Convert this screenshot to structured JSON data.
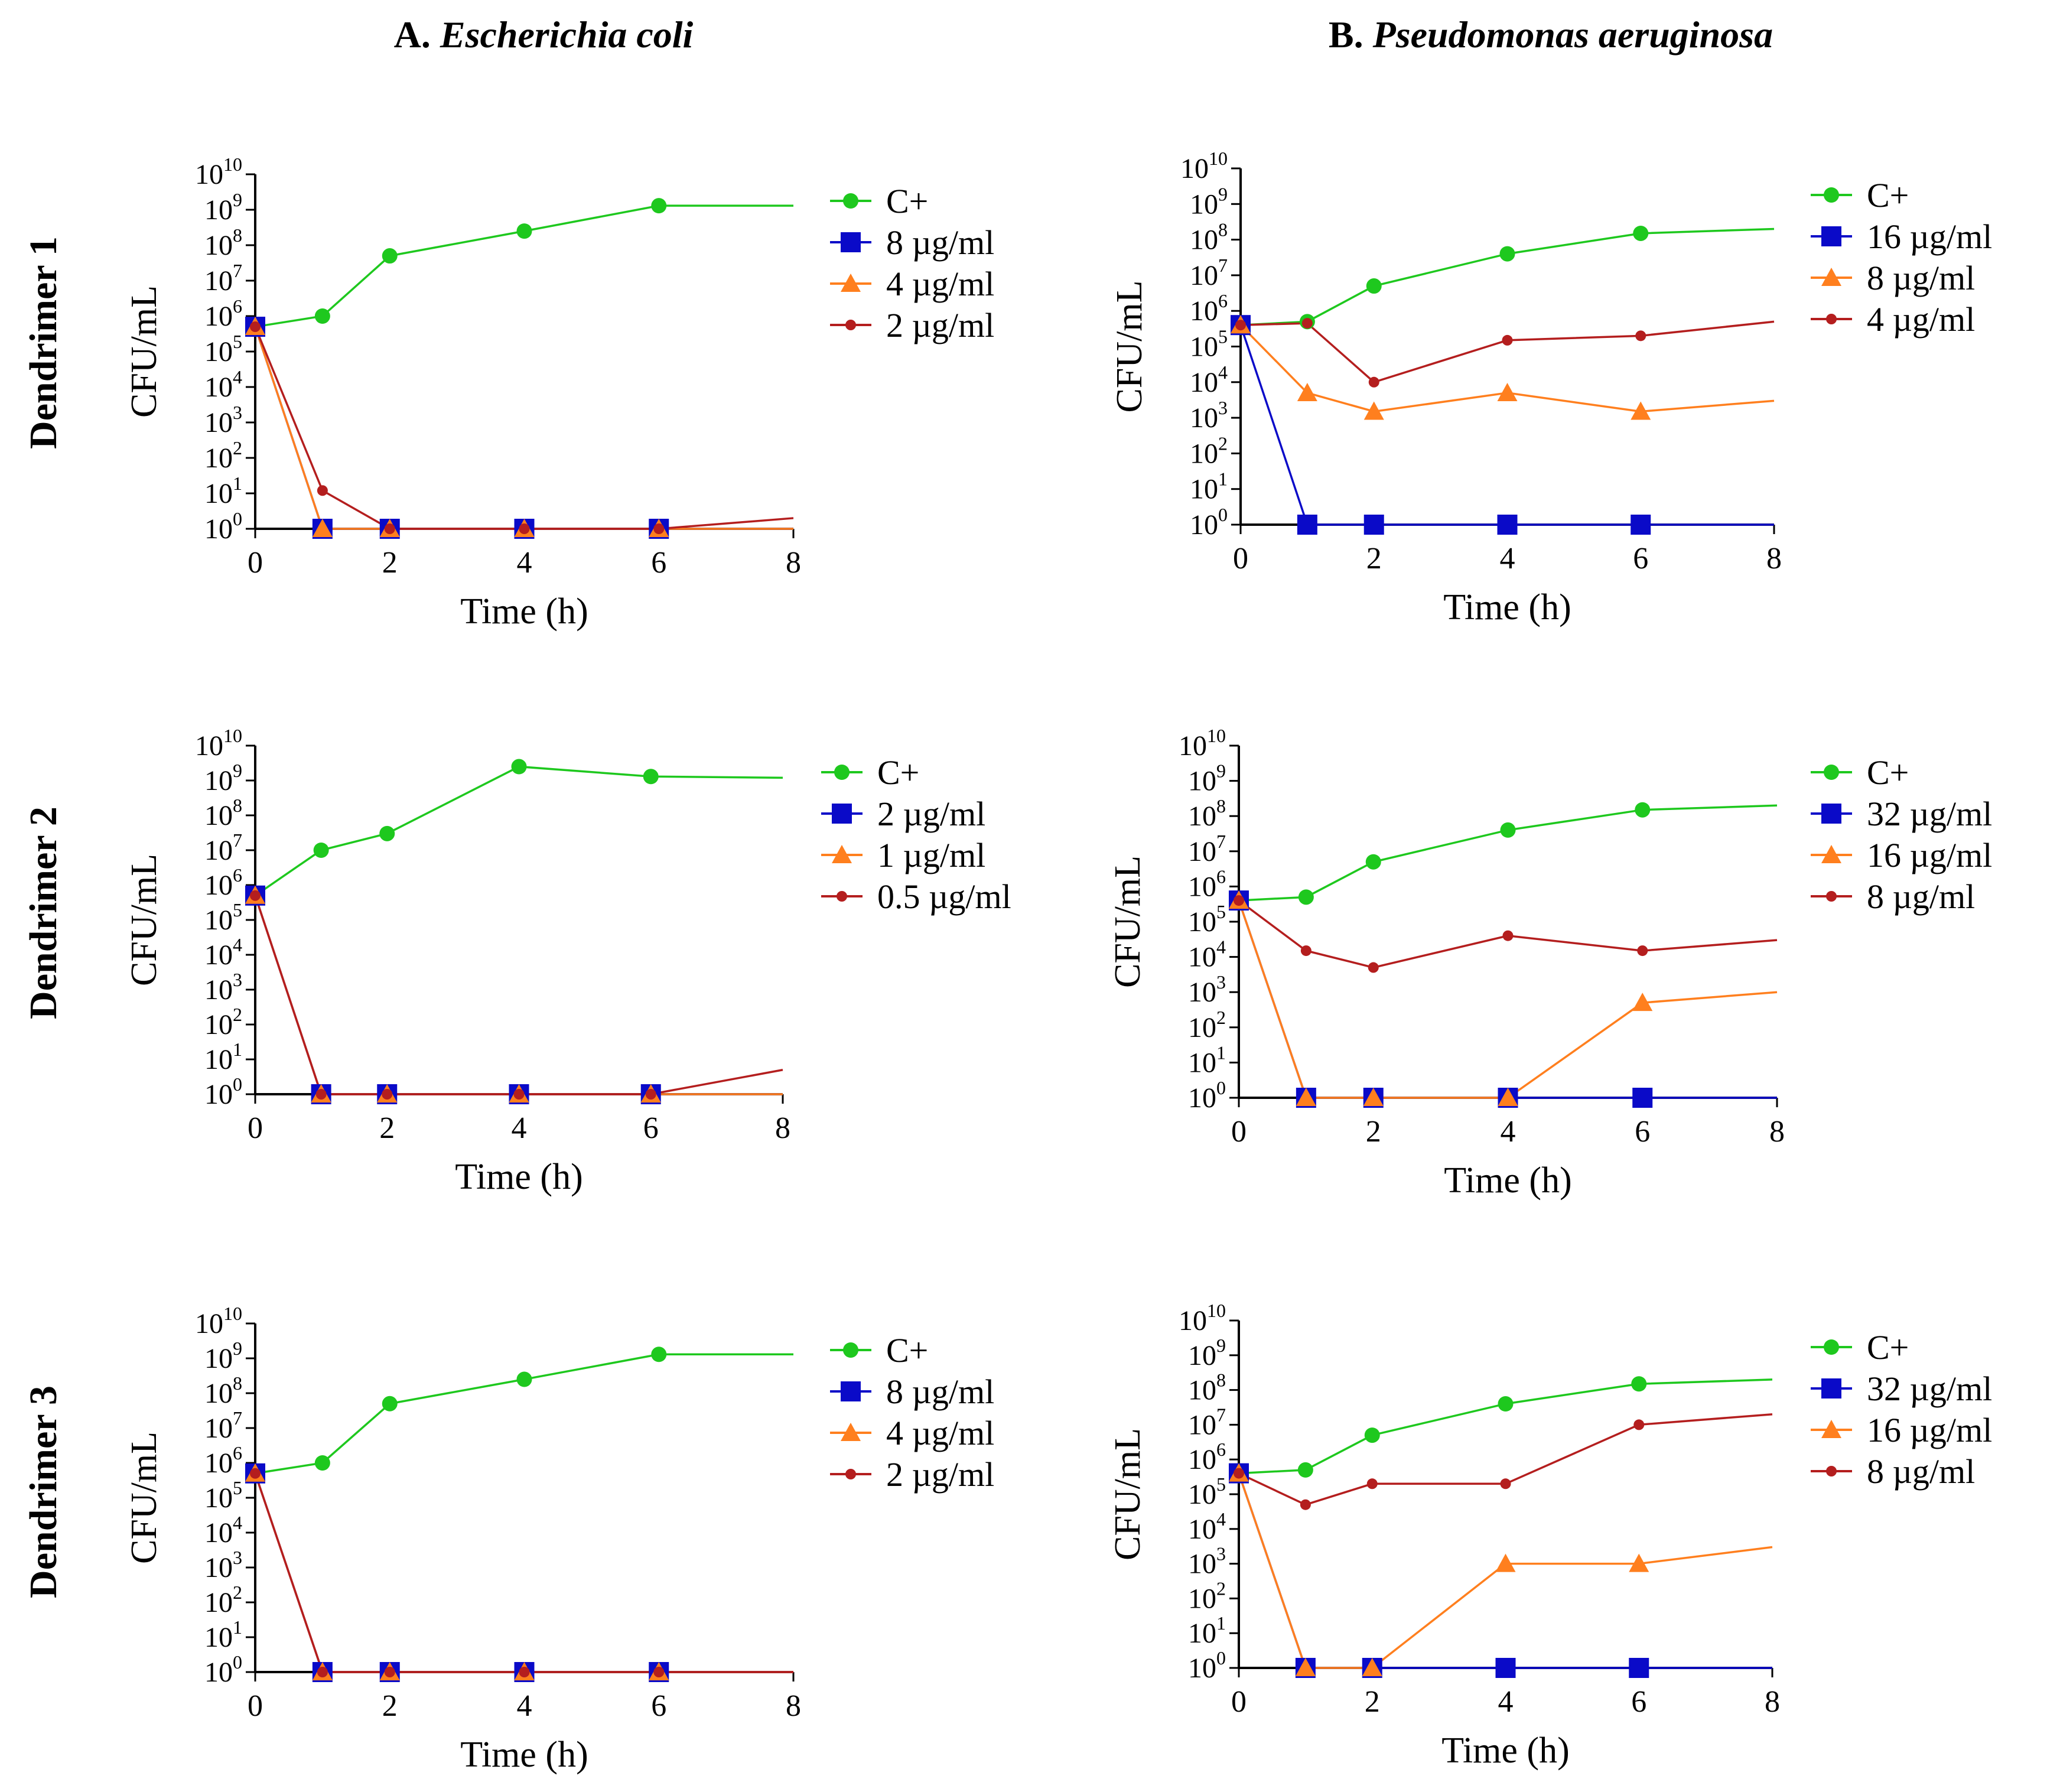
{
  "column_titles": [
    {
      "prefix": "A. ",
      "organism": "Escherichia coli"
    },
    {
      "prefix": "B. ",
      "organism": "Pseudomonas aeruginosa"
    }
  ],
  "row_labels": [
    "Dendrimer 1",
    "Dendrimer 2",
    "Dendrimer 3"
  ],
  "colors": {
    "c_plus": "#1ec81e",
    "high": "#0a0ac8",
    "mid": "#ff7f1e",
    "low": "#b41e1e",
    "axis": "#000000"
  },
  "chart_data": [
    {
      "type": "line",
      "title": "Dendrimer 1 — Escherichia coli",
      "xlabel": "Time (h)",
      "ylabel": "CFU/mL",
      "x": [
        0,
        1,
        2,
        4,
        6,
        8
      ],
      "xticks": [
        "0",
        "2",
        "4",
        "6",
        "8"
      ],
      "yscale": "log10",
      "ylim_exp": [
        0,
        10
      ],
      "series": [
        {
          "name": "C+",
          "marker": "circle",
          "values": [
            500000.0,
            1000000.0,
            50000000.0,
            250000000.0,
            1300000000.0,
            1300000000.0
          ]
        },
        {
          "name": "8 µg/ml",
          "marker": "square",
          "values": [
            500000.0,
            1,
            1,
            1,
            1,
            1
          ]
        },
        {
          "name": "4 µg/ml",
          "marker": "triangle",
          "values": [
            500000.0,
            1,
            1,
            1,
            1,
            1
          ]
        },
        {
          "name": "2 µg/ml",
          "marker": "dot",
          "values": [
            500000.0,
            12,
            1,
            1,
            1,
            2
          ]
        }
      ]
    },
    {
      "type": "line",
      "title": "Dendrimer 1 — Pseudomonas aeruginosa",
      "xlabel": "Time (h)",
      "ylabel": "CFU/mL",
      "x": [
        0,
        1,
        2,
        4,
        6,
        8
      ],
      "xticks": [
        "0",
        "2",
        "4",
        "6",
        "8"
      ],
      "yscale": "log10",
      "ylim_exp": [
        0,
        10
      ],
      "series": [
        {
          "name": "C+",
          "marker": "circle",
          "values": [
            400000.0,
            500000.0,
            5000000.0,
            40000000.0,
            150000000.0,
            200000000.0
          ]
        },
        {
          "name": "16 µg/ml",
          "marker": "square",
          "values": [
            400000.0,
            1,
            1,
            1,
            1,
            1
          ]
        },
        {
          "name": "8 µg/ml",
          "marker": "triangle",
          "values": [
            400000.0,
            5000.0,
            1500.0,
            5000.0,
            1500.0,
            3000.0
          ]
        },
        {
          "name": "4 µg/ml",
          "marker": "dot",
          "values": [
            400000.0,
            450000.0,
            10000.0,
            150000.0,
            200000.0,
            500000.0
          ]
        }
      ]
    },
    {
      "type": "line",
      "title": "Dendrimer 2 — Escherichia coli",
      "xlabel": "Time (h)",
      "ylabel": "CFU/mL",
      "x": [
        0,
        1,
        2,
        4,
        6,
        8
      ],
      "xticks": [
        "0",
        "2",
        "4",
        "6",
        "8"
      ],
      "yscale": "log10",
      "ylim_exp": [
        0,
        10
      ],
      "series": [
        {
          "name": "C+",
          "marker": "circle",
          "values": [
            500000.0,
            10000000.0,
            30000000.0,
            2500000000.0,
            1300000000.0,
            1200000000.0
          ]
        },
        {
          "name": "2 µg/ml",
          "marker": "square",
          "values": [
            500000.0,
            1,
            1,
            1,
            1,
            1
          ]
        },
        {
          "name": "1 µg/ml",
          "marker": "triangle",
          "values": [
            500000.0,
            1,
            1,
            1,
            1,
            1
          ]
        },
        {
          "name": "0.5 µg/ml",
          "marker": "dot",
          "values": [
            500000.0,
            1,
            1,
            1,
            1,
            5
          ]
        }
      ]
    },
    {
      "type": "line",
      "title": "Dendrimer 2 — Pseudomonas aeruginosa",
      "xlabel": "Time (h)",
      "ylabel": "CFU/mL",
      "x": [
        0,
        1,
        2,
        4,
        6,
        8
      ],
      "xticks": [
        "0",
        "2",
        "4",
        "6",
        "8"
      ],
      "yscale": "log10",
      "ylim_exp": [
        0,
        10
      ],
      "series": [
        {
          "name": "C+",
          "marker": "circle",
          "values": [
            400000.0,
            500000.0,
            5000000.0,
            40000000.0,
            150000000.0,
            200000000.0
          ]
        },
        {
          "name": "32 µg/ml",
          "marker": "square",
          "values": [
            400000.0,
            1,
            1,
            1,
            1,
            1
          ]
        },
        {
          "name": "16 µg/ml",
          "marker": "triangle",
          "values": [
            400000.0,
            1,
            1,
            1,
            500.0,
            1000.0
          ]
        },
        {
          "name": "8 µg/ml",
          "marker": "dot",
          "values": [
            400000.0,
            15000.0,
            5000.0,
            40000.0,
            15000.0,
            30000.0
          ]
        }
      ]
    },
    {
      "type": "line",
      "title": "Dendrimer 3 — Escherichia coli",
      "xlabel": "Time (h)",
      "ylabel": "CFU/mL",
      "x": [
        0,
        1,
        2,
        4,
        6,
        8
      ],
      "xticks": [
        "0",
        "2",
        "4",
        "6",
        "8"
      ],
      "yscale": "log10",
      "ylim_exp": [
        0,
        10
      ],
      "series": [
        {
          "name": "C+",
          "marker": "circle",
          "values": [
            500000.0,
            1000000.0,
            50000000.0,
            250000000.0,
            1300000000.0,
            1300000000.0
          ]
        },
        {
          "name": "8 µg/ml",
          "marker": "square",
          "values": [
            500000.0,
            1,
            1,
            1,
            1,
            1
          ]
        },
        {
          "name": "4 µg/ml",
          "marker": "triangle",
          "values": [
            500000.0,
            1,
            1,
            1,
            1,
            1
          ]
        },
        {
          "name": "2 µg/ml",
          "marker": "dot",
          "values": [
            500000.0,
            1,
            1,
            1,
            1,
            1
          ]
        }
      ]
    },
    {
      "type": "line",
      "title": "Dendrimer 3 — Pseudomonas aeruginosa",
      "xlabel": "Time (h)",
      "ylabel": "CFU/mL",
      "x": [
        0,
        1,
        2,
        4,
        6,
        8
      ],
      "xticks": [
        "0",
        "2",
        "4",
        "6",
        "8"
      ],
      "yscale": "log10",
      "ylim_exp": [
        0,
        10
      ],
      "series": [
        {
          "name": "C+",
          "marker": "circle",
          "values": [
            400000.0,
            500000.0,
            5000000.0,
            40000000.0,
            150000000.0,
            200000000.0
          ]
        },
        {
          "name": "32 µg/ml",
          "marker": "square",
          "values": [
            400000.0,
            1,
            1,
            1,
            1,
            1
          ]
        },
        {
          "name": "16 µg/ml",
          "marker": "triangle",
          "values": [
            400000.0,
            1,
            1,
            1000.0,
            1000.0,
            3000.0
          ]
        },
        {
          "name": "8 µg/ml",
          "marker": "dot",
          "values": [
            400000.0,
            50000.0,
            200000.0,
            200000.0,
            10000000.0,
            20000000.0
          ]
        }
      ]
    }
  ]
}
